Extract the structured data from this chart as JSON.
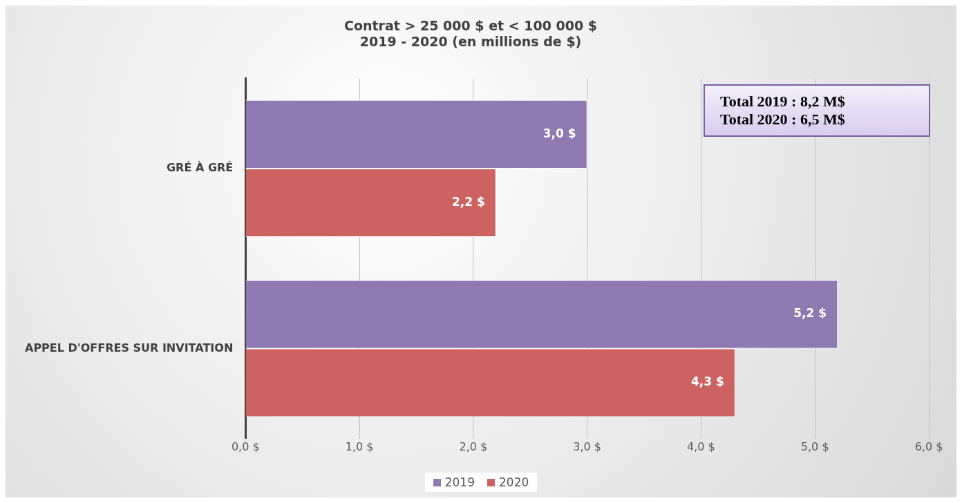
{
  "chart_data": {
    "type": "bar",
    "orientation": "horizontal",
    "title": "Contrat > 25 000 $ et < 100 000 $\n2019 - 2020 (en millions de $)",
    "categories": [
      "GRÉ À GRÉ",
      "APPEL D'OFFRES SUR INVITATION"
    ],
    "series": [
      {
        "name": "2019",
        "color": "#8e79b0",
        "values": [
          3.0,
          5.2
        ],
        "value_labels": [
          "3,0 $",
          "5,2 $"
        ]
      },
      {
        "name": "2020",
        "color": "#cd6262",
        "values": [
          2.2,
          4.3
        ],
        "value_labels": [
          "2,2 $",
          "4,3 $"
        ]
      }
    ],
    "xlim": [
      0,
      6
    ],
    "xticks": [
      {
        "value": 0,
        "label": "0,0 $"
      },
      {
        "value": 1,
        "label": "1,0 $"
      },
      {
        "value": 2,
        "label": "2,0 $"
      },
      {
        "value": 3,
        "label": "3,0 $"
      },
      {
        "value": 4,
        "label": "4,0 $"
      },
      {
        "value": 5,
        "label": "5,0 $"
      },
      {
        "value": 6,
        "label": "6,0 $"
      }
    ],
    "grid": "x",
    "legend": "bottom",
    "annotations": [
      "Total 2019 : 8,2 M$",
      "Total 2020 : 6,5 M$"
    ]
  }
}
